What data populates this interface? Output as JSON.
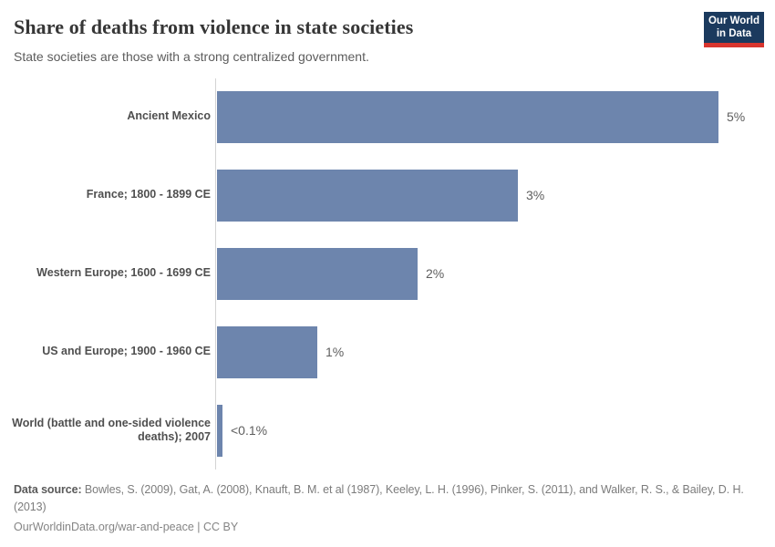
{
  "header": {
    "title": "Share of deaths from violence in state societies",
    "subtitle": "State societies are those with a strong centralized government.",
    "logo": {
      "line1": "Our World",
      "line2": "in Data"
    }
  },
  "chart_data": {
    "type": "bar",
    "orientation": "horizontal",
    "title": "Share of deaths from violence in state societies",
    "xlabel": "",
    "ylabel": "",
    "xlim": [
      0,
      5.2
    ],
    "grid": false,
    "legend": false,
    "categories": [
      "Ancient Mexico",
      "France; 1800 - 1899 CE",
      "Western Europe; 1600 - 1699 CE",
      "US and Europe; 1900 - 1960 CE",
      "World (battle and one-sided violence deaths); 2007"
    ],
    "values": [
      5,
      3,
      2,
      1,
      0.05
    ],
    "value_labels": [
      "5%",
      "3%",
      "2%",
      "1%",
      "<0.1%"
    ],
    "bar_color": "#6d85ad",
    "unit": "%"
  },
  "footer": {
    "datasource_label": "Data source:",
    "datasource_text": "Bowles, S. (2009), Gat, A. (2008), Knauft, B. M. et al (1987), Keeley, L. H. (1996), Pinker, S. (2011), and Walker, R. S., & Bailey, D. H. (2013)",
    "link_text": "OurWorldinData.org/war-and-peace | CC BY"
  },
  "colors": {
    "bar": "#6d85ad",
    "title": "#363636",
    "subtitle": "#5c5c5c",
    "axis_line": "#d4d4d4",
    "logo_navy": "#1b3a5e",
    "logo_red": "#d8352e"
  }
}
